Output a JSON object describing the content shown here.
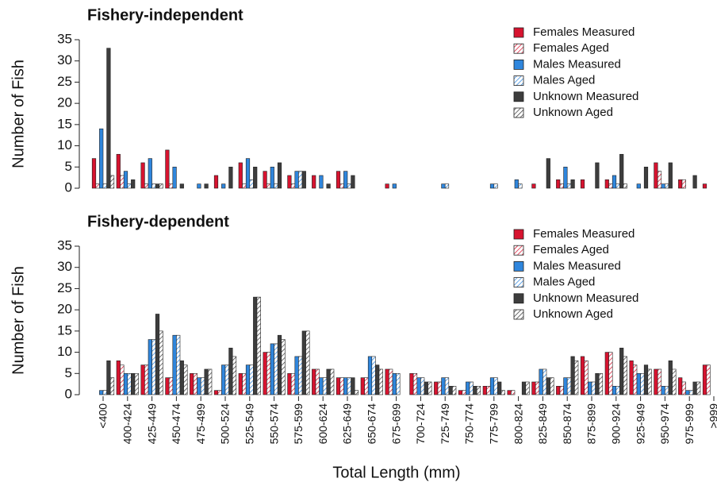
{
  "chart_data": [
    {
      "type": "bar",
      "title": "Fishery-independent",
      "y_label": "Number of Fish",
      "ylim": [
        0,
        35
      ],
      "yticks": [
        0,
        5,
        10,
        15,
        20,
        25,
        30,
        35
      ],
      "series": [
        {
          "name": "Females Measured",
          "color": "#d7132f",
          "pattern": "solid",
          "values": [
            7,
            8,
            6,
            9,
            0,
            3,
            6,
            4,
            3,
            3,
            4,
            0,
            1,
            0,
            0,
            0,
            0,
            0,
            1,
            2,
            2,
            2,
            0,
            6,
            2,
            1
          ]
        },
        {
          "name": "Females Aged",
          "color": "#d7132f",
          "pattern": "hatch",
          "values": [
            1,
            3,
            1,
            1,
            0,
            0,
            1,
            1,
            1,
            0,
            1,
            0,
            0,
            0,
            0,
            0,
            0,
            0,
            0,
            1,
            0,
            1,
            0,
            4,
            2,
            0
          ]
        },
        {
          "name": "Males Measured",
          "color": "#2f86dd",
          "pattern": "solid",
          "values": [
            14,
            4,
            7,
            5,
            1,
            1,
            7,
            5,
            4,
            3,
            4,
            0,
            1,
            0,
            1,
            0,
            1,
            2,
            0,
            5,
            0,
            3,
            1,
            1,
            0,
            0
          ]
        },
        {
          "name": "Males Aged",
          "color": "#2f86dd",
          "pattern": "hatch",
          "values": [
            1,
            1,
            1,
            0,
            0,
            0,
            2,
            1,
            4,
            0,
            1,
            0,
            0,
            0,
            1,
            0,
            1,
            1,
            0,
            1,
            0,
            1,
            0,
            1,
            0,
            0
          ]
        },
        {
          "name": "Unknown Measured",
          "color": "#3d3d3d",
          "pattern": "solid",
          "values": [
            33,
            2,
            1,
            1,
            1,
            5,
            5,
            6,
            4,
            1,
            3,
            0,
            0,
            0,
            0,
            0,
            0,
            0,
            7,
            2,
            6,
            8,
            5,
            6,
            3,
            1
          ]
        },
        {
          "name": "Unknown Aged",
          "color": "#3d3d3d",
          "pattern": "hatch",
          "values": [
            3,
            0,
            1,
            0,
            0,
            0,
            0,
            0,
            0,
            0,
            0,
            0,
            0,
            0,
            0,
            0,
            0,
            0,
            0,
            0,
            0,
            1,
            0,
            0,
            0,
            0
          ]
        }
      ]
    },
    {
      "type": "bar",
      "title": "Fishery-dependent",
      "y_label": "Number of Fish",
      "x_label": "Total Length (mm)",
      "categories": [
        "<400",
        "400-424",
        "425-449",
        "450-474",
        "475-499",
        "500-524",
        "525-549",
        "550-574",
        "575-599",
        "600-624",
        "625-649",
        "650-674",
        "675-699",
        "700-724",
        "725-749",
        "750-774",
        "775-799",
        "800-824",
        "825-849",
        "850-874",
        "875-899",
        "900-924",
        "925-949",
        "950-974",
        "975-999",
        ">999"
      ],
      "ylim": [
        0,
        35
      ],
      "yticks": [
        0,
        5,
        10,
        15,
        20,
        25,
        30,
        35
      ],
      "series": [
        {
          "name": "Females Measured",
          "color": "#d7132f",
          "pattern": "solid",
          "values": [
            0,
            8,
            7,
            4,
            5,
            1,
            5,
            10,
            5,
            6,
            4,
            4,
            6,
            5,
            3,
            1,
            2,
            1,
            3,
            2,
            9,
            10,
            8,
            6,
            4,
            7
          ]
        },
        {
          "name": "Females Aged",
          "color": "#d7132f",
          "pattern": "hatch",
          "values": [
            0,
            7,
            7,
            4,
            5,
            1,
            5,
            10,
            5,
            6,
            4,
            4,
            6,
            5,
            3,
            1,
            2,
            1,
            3,
            2,
            8,
            10,
            7,
            6,
            3,
            7
          ]
        },
        {
          "name": "Males Measured",
          "color": "#2f86dd",
          "pattern": "solid",
          "values": [
            1,
            5,
            13,
            14,
            4,
            7,
            7,
            12,
            9,
            4,
            4,
            9,
            5,
            4,
            4,
            3,
            4,
            0,
            6,
            4,
            3,
            2,
            5,
            2,
            1,
            0
          ]
        },
        {
          "name": "Males Aged",
          "color": "#2f86dd",
          "pattern": "hatch",
          "values": [
            1,
            5,
            13,
            14,
            4,
            7,
            7,
            12,
            9,
            4,
            4,
            9,
            5,
            4,
            4,
            3,
            4,
            0,
            6,
            4,
            3,
            2,
            5,
            2,
            1,
            0
          ]
        },
        {
          "name": "Unknown Measured",
          "color": "#3d3d3d",
          "pattern": "solid",
          "values": [
            8,
            5,
            19,
            8,
            6,
            11,
            23,
            14,
            15,
            6,
            4,
            7,
            0,
            3,
            2,
            2,
            3,
            3,
            4,
            9,
            5,
            11,
            7,
            8,
            3,
            1
          ]
        },
        {
          "name": "Unknown Aged",
          "color": "#3d3d3d",
          "pattern": "hatch",
          "values": [
            4,
            5,
            15,
            7,
            6,
            9,
            23,
            13,
            15,
            6,
            1,
            6,
            0,
            3,
            2,
            2,
            1,
            3,
            4,
            8,
            5,
            9,
            6,
            6,
            3,
            0
          ]
        }
      ]
    }
  ]
}
